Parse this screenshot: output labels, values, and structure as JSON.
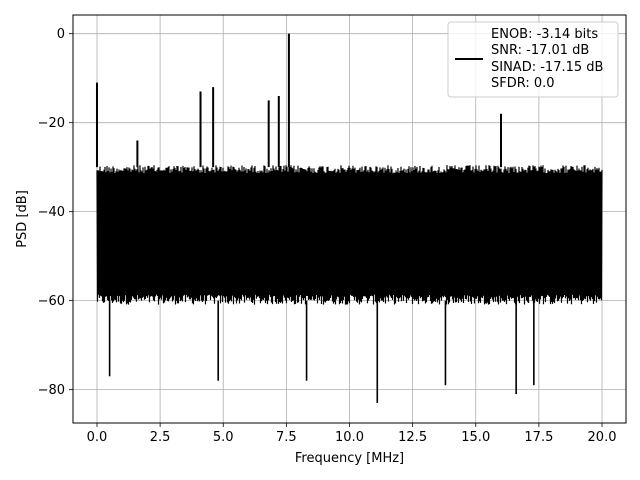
{
  "chart_data": {
    "type": "line",
    "title": "",
    "xlabel": "Frequency [MHz]",
    "ylabel": "PSD [dB]",
    "xlim": [
      -0.95,
      20.95
    ],
    "ylim": [
      -87.5,
      4.2
    ],
    "x_ticks": [
      0.0,
      2.5,
      5.0,
      7.5,
      10.0,
      12.5,
      15.0,
      17.5,
      20.0
    ],
    "x_tick_labels": [
      "0.0",
      "2.5",
      "5.0",
      "7.5",
      "10.0",
      "12.5",
      "15.0",
      "17.5",
      "20.0"
    ],
    "y_ticks": [
      0,
      -20,
      -40,
      -60,
      -80
    ],
    "y_tick_labels": [
      "0",
      "−20",
      "−40",
      "−60",
      "−80"
    ],
    "grid": true,
    "legend_position": "top-right",
    "series": [
      {
        "name": "ENOB: -3.14 bits\nSNR: -17.01 dB\nSINAD: -17.15 dB\nSFDR: 0.0",
        "color": "#000000",
        "x_range": [
          0.0,
          20.0
        ],
        "noise_floor_top": -30,
        "noise_floor_bottom": -60,
        "spurs": [
          {
            "x": 0.0,
            "y": -11
          },
          {
            "x": 1.6,
            "y": -24
          },
          {
            "x": 4.1,
            "y": -13
          },
          {
            "x": 4.6,
            "y": -12
          },
          {
            "x": 6.8,
            "y": -15
          },
          {
            "x": 7.2,
            "y": -14
          },
          {
            "x": 7.6,
            "y": 0
          },
          {
            "x": 16.0,
            "y": -18
          }
        ],
        "dips": [
          {
            "x": 0.5,
            "y": -77
          },
          {
            "x": 4.8,
            "y": -78
          },
          {
            "x": 8.3,
            "y": -78
          },
          {
            "x": 11.1,
            "y": -83
          },
          {
            "x": 13.8,
            "y": -79
          },
          {
            "x": 16.6,
            "y": -81
          },
          {
            "x": 17.3,
            "y": -79
          }
        ]
      }
    ]
  },
  "legend": {
    "lines": [
      "ENOB: -3.14 bits",
      "SNR: -17.01 dB",
      "SINAD: -17.15 dB",
      "SFDR: 0.0"
    ]
  }
}
